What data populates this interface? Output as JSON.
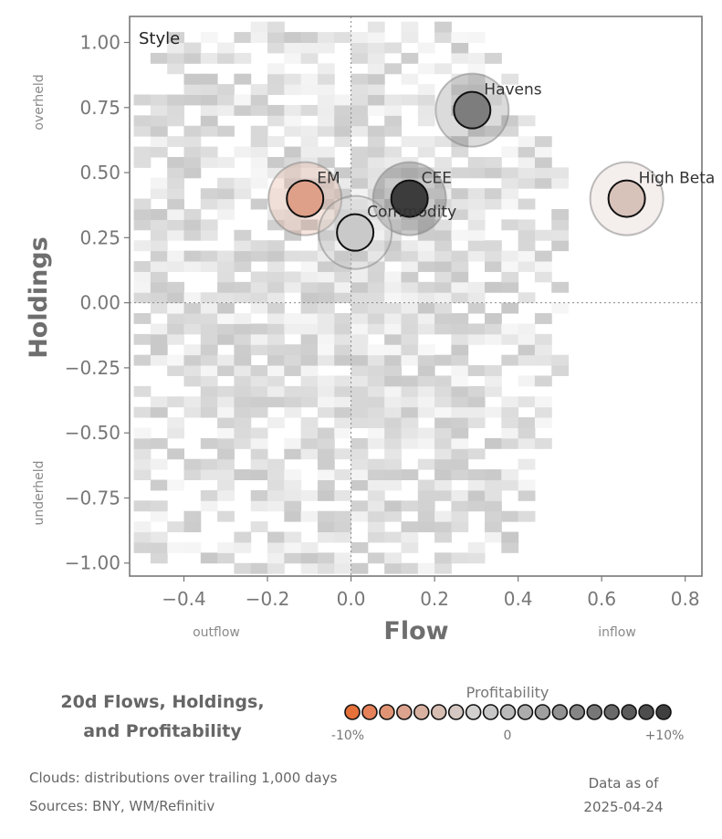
{
  "chart_data": {
    "type": "scatter",
    "title": "Style",
    "xlabel": "Flow",
    "ylabel": "Holdings",
    "xlim": [
      -0.53,
      0.84
    ],
    "ylim": [
      -1.05,
      1.1
    ],
    "x_ticks": [
      "−0.4",
      "−0.2",
      "0.0",
      "0.2",
      "0.4",
      "0.6",
      "0.8"
    ],
    "x_tick_values": [
      -0.4,
      -0.2,
      0.0,
      0.2,
      0.4,
      0.6,
      0.8
    ],
    "y_ticks": [
      "1.00",
      "0.75",
      "0.50",
      "0.25",
      "0.00",
      "−0.25",
      "−0.50",
      "−0.75",
      "−1.00"
    ],
    "y_tick_values": [
      1.0,
      0.75,
      0.5,
      0.25,
      0.0,
      -0.25,
      -0.5,
      -0.75,
      -1.0
    ],
    "x_side_labels": {
      "left": "outflow",
      "right": "inflow"
    },
    "y_side_labels": {
      "top": "overheld",
      "bottom": "underheld"
    },
    "reference_lines": {
      "x": 0,
      "y": 0
    },
    "background": "density cloud (grey heatmap)",
    "points": [
      {
        "label": "Havens",
        "x": 0.29,
        "y": 0.74,
        "profitability": 4,
        "color": "#7d7d7d"
      },
      {
        "label": "EM",
        "x": -0.11,
        "y": 0.4,
        "profitability": -4,
        "color": "#dfa08a"
      },
      {
        "label": "CEE",
        "x": 0.14,
        "y": 0.4,
        "profitability": 10,
        "color": "#3c3c3c"
      },
      {
        "label": "Commodity",
        "x": 0.01,
        "y": 0.27,
        "profitability": 1,
        "color": "#c9c9c9"
      },
      {
        "label": "High Beta",
        "x": 0.66,
        "y": 0.4,
        "profitability": -1,
        "color": "#d8c3ba"
      }
    ],
    "colorbar": {
      "title": "Profitability",
      "tick_labels": [
        "-10%",
        "0",
        "+10%"
      ],
      "colors": [
        "#e5703a",
        "#e5825a",
        "#e09474",
        "#dca38e",
        "#d8b1a1",
        "#d6bdb2",
        "#d5c8c2",
        "#d2d0cf",
        "#c7c7c7",
        "#bababa",
        "#acacac",
        "#9f9f9f",
        "#929292",
        "#858585",
        "#777777",
        "#696969",
        "#5b5b5b",
        "#4d4d4d",
        "#3f3f3f"
      ]
    }
  },
  "footer": {
    "title_line1": "20d Flows, Holdings,",
    "title_line2": "and Profitability",
    "note_clouds": "Clouds:  distributions over trailing 1,000 days",
    "note_sources": "Sources:  BNY, WM/Refinitiv",
    "data_as_of_label": "Data as of",
    "data_as_of_date": "2025-04-24"
  }
}
